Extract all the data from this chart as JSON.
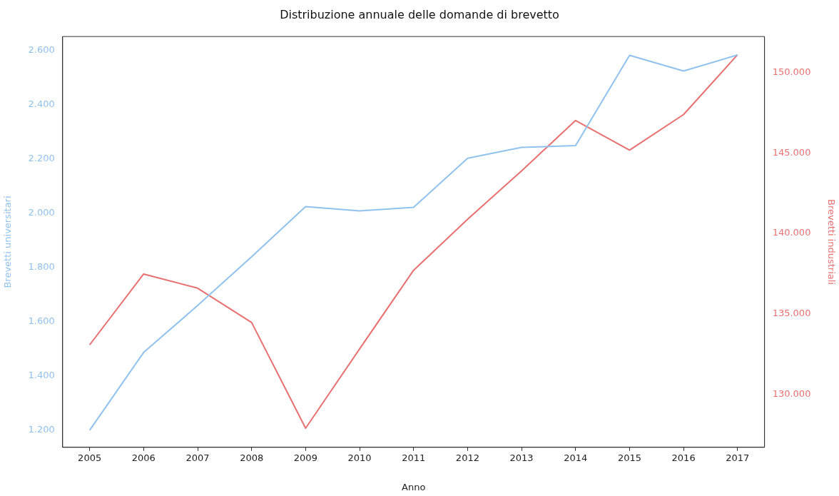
{
  "chart_data": {
    "type": "line",
    "title": "Distribuzione annuale delle domande di brevetto",
    "xlabel": "Anno",
    "ylabel": "Brevetti universitari",
    "y2label": "Brevetti industriali",
    "categories": [
      "2005",
      "2006",
      "2007",
      "2008",
      "2009",
      "2010",
      "2011",
      "2012",
      "2013",
      "2014",
      "2015",
      "2016",
      "2017"
    ],
    "series": [
      {
        "color": "#90c2ee",
        "values": [
          1200,
          1487,
          1660,
          1840,
          2025,
          2009,
          2022,
          2203,
          2243,
          2250,
          2583,
          2525,
          2584
        ]
      },
      {
        "color": "#e87070",
        "axis": "y2",
        "values": [
          133070,
          137475,
          136594,
          134462,
          127890,
          132820,
          137710,
          140880,
          143890,
          147020,
          145180,
          147390,
          151110
        ]
      }
    ],
    "ylim": [
      1137,
      2652
    ],
    "yticks": [
      {
        "value": 1200,
        "label": "1.200"
      },
      {
        "value": 1400,
        "label": "1.400"
      },
      {
        "value": 1600,
        "label": "1.600"
      },
      {
        "value": 1800,
        "label": "1.800"
      },
      {
        "value": 2000,
        "label": "2.000"
      },
      {
        "value": 2200,
        "label": "2.200"
      },
      {
        "value": 2400,
        "label": "2.400"
      },
      {
        "value": 2600,
        "label": "2.600"
      }
    ],
    "y2lim": [
      126700,
      152240
    ],
    "y2ticks": [
      {
        "value": 130000,
        "label": "130.000"
      },
      {
        "value": 135000,
        "label": "135.000"
      },
      {
        "value": 140000,
        "label": "140.000"
      },
      {
        "value": 145000,
        "label": "145.000"
      },
      {
        "value": 150000,
        "label": "150.000"
      }
    ],
    "grid": false,
    "legend": false,
    "marker": "none",
    "line_style": "solid"
  }
}
